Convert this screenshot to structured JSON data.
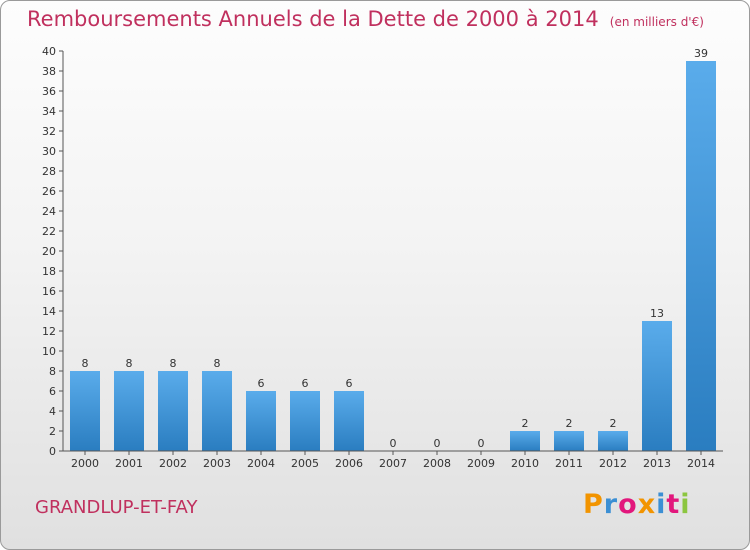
{
  "header": {
    "title": "Remboursements Annuels de la Dette de 2000 à 2014",
    "unit": "(en milliers d'€)"
  },
  "footer": {
    "town": "GRANDLUP-ET-FAY",
    "logo_letters": [
      "P",
      "r",
      "o",
      "x",
      "i",
      "t",
      "i"
    ],
    "logo_colors": [
      "#f29400",
      "#3b8fd4",
      "#e2177c",
      "#f29400",
      "#3b8fd4",
      "#e2177c",
      "#8cc640"
    ]
  },
  "chart_data": {
    "type": "bar",
    "title": "Remboursements Annuels de la Dette de 2000 à 2014",
    "subtitle": "(en milliers d'€)",
    "xlabel": "",
    "ylabel": "",
    "categories": [
      "2000",
      "2001",
      "2002",
      "2003",
      "2004",
      "2005",
      "2006",
      "2007",
      "2008",
      "2009",
      "2010",
      "2011",
      "2012",
      "2013",
      "2014"
    ],
    "values": [
      8,
      8,
      8,
      8,
      6,
      6,
      6,
      0,
      0,
      0,
      2,
      2,
      2,
      13,
      39
    ],
    "ylim": [
      0,
      40
    ],
    "ytick_step": 2,
    "grid": false,
    "legend": "none",
    "colors": {
      "bar_light": "#5aaceb",
      "bar_dark": "#2a7dc0",
      "axis": "#555555",
      "title": "#c0305e"
    }
  }
}
